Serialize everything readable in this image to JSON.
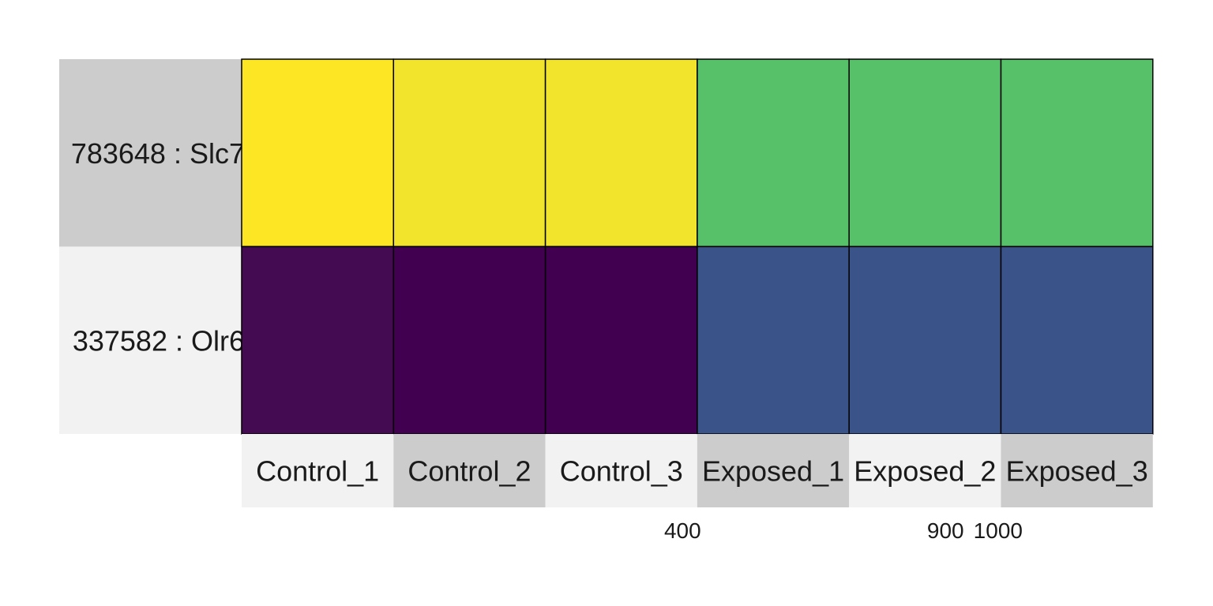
{
  "chart_data": {
    "type": "heatmap",
    "title": "",
    "xlabel": "",
    "ylabel": "",
    "columns": [
      "Control_1",
      "Control_2",
      "Control_3",
      "Exposed_1",
      "Exposed_2",
      "Exposed_3"
    ],
    "rows": [
      {
        "label": "783648 :  Slc7",
        "values": [
          1000,
          960,
          960,
          640,
          640,
          640
        ]
      },
      {
        "label": "337582 :  Olr6",
        "values": [
          180,
          150,
          150,
          400,
          400,
          400
        ]
      }
    ],
    "value_range": [
      150,
      1000
    ],
    "colormap": "viridis",
    "cell_colors": [
      [
        "#fde725",
        "#f2e42d",
        "#f2e42d",
        "#57c16a",
        "#57c16a",
        "#57c16a"
      ],
      [
        "#440a52",
        "#420050",
        "#420050",
        "#3a548a",
        "#3a548a",
        "#3a548a"
      ]
    ],
    "row_label_backgrounds": [
      "#cccccc",
      "#f2f2f2"
    ],
    "column_label_backgrounds": [
      "#f2f2f2",
      "#cccccc",
      "#f2f2f2",
      "#cccccc",
      "#f2f2f2",
      "#cccccc"
    ],
    "legend_ticks": [
      {
        "value": 400,
        "label": "400"
      },
      {
        "value": 900,
        "label": "900"
      },
      {
        "value": 1000,
        "label": "1000"
      }
    ],
    "legend_range": [
      0,
      1200
    ],
    "grid": false,
    "cell_border_color": "#000000"
  }
}
